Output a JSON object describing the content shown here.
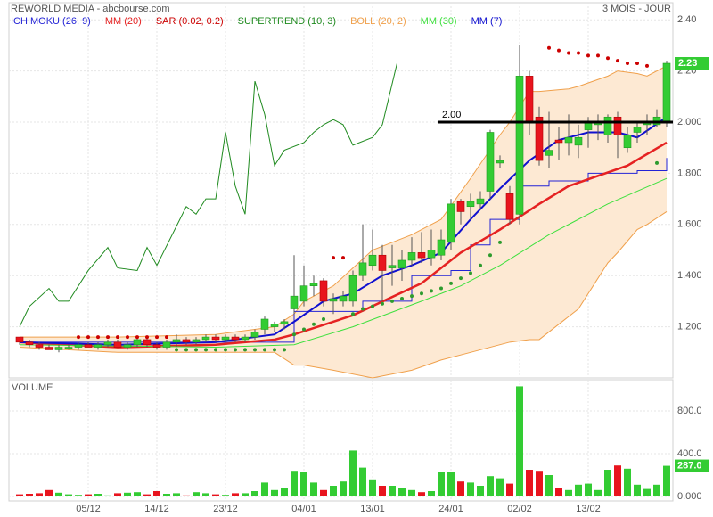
{
  "chart_data": [
    {
      "type": "candlestick",
      "title": "REWORLD MEDIA - abcbourse.com",
      "period": "3 MOIS - JOUR",
      "up_color": "#33cc33",
      "down_color": "#e8141e",
      "ylim": [
        1.0,
        2.46
      ],
      "yticks": [
        {
          "value": 1.2,
          "label": "1.200"
        },
        {
          "value": 1.4,
          "label": "1.400"
        },
        {
          "value": 1.6,
          "label": "1.600"
        },
        {
          "value": 1.8,
          "label": "1.800"
        },
        {
          "value": 2.0,
          "label": "2.000"
        },
        {
          "value": 2.2,
          "label": "2.20"
        },
        {
          "value": 2.4,
          "label": "2.40"
        }
      ],
      "grid": true,
      "open": [
        1.16,
        1.14,
        1.13,
        1.12,
        1.11,
        1.12,
        1.12,
        1.13,
        1.12,
        1.13,
        1.14,
        1.12,
        1.13,
        1.15,
        1.13,
        1.12,
        1.14,
        1.15,
        1.14,
        1.15,
        1.16,
        1.15,
        1.16,
        1.15,
        1.16,
        1.19,
        1.2,
        1.21,
        1.27,
        1.3,
        1.36,
        1.38,
        1.3,
        1.3,
        1.3,
        1.4,
        1.44,
        1.48,
        1.43,
        1.43,
        1.46,
        1.49,
        1.47,
        1.48,
        1.53,
        1.69,
        1.67,
        1.68,
        1.73,
        1.84,
        1.72,
        1.64,
        2.18,
        2.02,
        1.87,
        1.93,
        1.92,
        1.91,
        1.97,
        1.99,
        1.95,
        2.02,
        1.9,
        1.96,
        1.99,
        1.99,
        2.0
      ],
      "high": [
        1.16,
        1.15,
        1.14,
        1.13,
        1.13,
        1.13,
        1.14,
        1.14,
        1.14,
        1.15,
        1.15,
        1.14,
        1.16,
        1.16,
        1.14,
        1.15,
        1.17,
        1.16,
        1.16,
        1.17,
        1.17,
        1.17,
        1.17,
        1.17,
        1.19,
        1.24,
        1.22,
        1.23,
        1.48,
        1.44,
        1.4,
        1.39,
        1.33,
        1.34,
        1.42,
        1.6,
        1.58,
        1.52,
        1.52,
        1.5,
        1.55,
        1.57,
        1.58,
        1.58,
        1.7,
        1.7,
        1.72,
        1.73,
        1.97,
        1.87,
        1.75,
        2.3,
        2.2,
        2.06,
        2.04,
        1.98,
        2.03,
        1.99,
        2.02,
        2.03,
        2.03,
        2.04,
        1.98,
        2.0,
        2.03,
        2.05,
        2.24
      ],
      "low": [
        1.13,
        1.12,
        1.11,
        1.11,
        1.1,
        1.11,
        1.11,
        1.12,
        1.11,
        1.12,
        1.12,
        1.11,
        1.12,
        1.12,
        1.11,
        1.11,
        1.12,
        1.13,
        1.13,
        1.14,
        1.14,
        1.14,
        1.14,
        1.14,
        1.15,
        1.17,
        1.18,
        1.19,
        1.25,
        1.28,
        1.32,
        1.28,
        1.25,
        1.28,
        1.28,
        1.38,
        1.42,
        1.3,
        1.36,
        1.38,
        1.44,
        1.45,
        1.44,
        1.46,
        1.5,
        1.6,
        1.62,
        1.66,
        1.7,
        1.82,
        1.6,
        1.6,
        1.95,
        1.83,
        1.82,
        1.85,
        1.87,
        1.86,
        1.9,
        1.93,
        1.92,
        1.86,
        1.88,
        1.92,
        1.95,
        1.98,
        1.98
      ],
      "close": [
        1.14,
        1.13,
        1.12,
        1.11,
        1.12,
        1.12,
        1.13,
        1.12,
        1.13,
        1.14,
        1.12,
        1.13,
        1.15,
        1.13,
        1.12,
        1.14,
        1.15,
        1.14,
        1.15,
        1.16,
        1.15,
        1.16,
        1.15,
        1.16,
        1.18,
        1.23,
        1.21,
        1.22,
        1.32,
        1.36,
        1.37,
        1.3,
        1.31,
        1.32,
        1.4,
        1.45,
        1.48,
        1.42,
        1.44,
        1.46,
        1.49,
        1.47,
        1.5,
        1.54,
        1.68,
        1.65,
        1.69,
        1.7,
        1.96,
        1.85,
        1.62,
        2.18,
        2.0,
        1.85,
        1.89,
        1.92,
        1.94,
        1.94,
        2.0,
        2.0,
        2.02,
        1.95,
        1.95,
        1.98,
        2.0,
        2.02,
        2.23
      ],
      "annotation": {
        "text": "2.00",
        "value": 2.0
      },
      "overlays": [
        {
          "name": "ICHIMOKU (26, 9)",
          "type": "step",
          "color": "#2323d6",
          "x": [
            0,
            24,
            28,
            35,
            40,
            44,
            46,
            48,
            51,
            54,
            58,
            63,
            65,
            66
          ],
          "values": [
            1.14,
            1.14,
            1.26,
            1.3,
            1.4,
            1.42,
            1.52,
            1.62,
            1.75,
            1.77,
            1.8,
            1.81,
            1.81,
            1.86
          ]
        },
        {
          "name": "MM (20)",
          "type": "line",
          "color": "#e52222",
          "width": 2.5,
          "x": [
            0,
            10,
            20,
            26,
            28,
            34,
            41,
            45,
            49,
            53,
            56,
            62,
            66
          ],
          "values": [
            1.14,
            1.12,
            1.13,
            1.15,
            1.17,
            1.245,
            1.37,
            1.49,
            1.58,
            1.68,
            1.75,
            1.83,
            1.92
          ]
        },
        {
          "name": "SAR (0.02, 0.2)",
          "type": "dots",
          "color": "#cc0000",
          "below_color": "#2e9b2e",
          "x": [
            6,
            7,
            8,
            9,
            10,
            11,
            12,
            13,
            14,
            15,
            16,
            17,
            18,
            19,
            20,
            21,
            22,
            23,
            24,
            25,
            26,
            27,
            28,
            29,
            30,
            31,
            32,
            33,
            34,
            35,
            36,
            37,
            38,
            39,
            40,
            41,
            42,
            43,
            44,
            45,
            46,
            47,
            48,
            49,
            54,
            55,
            56,
            57,
            58,
            59,
            60,
            61,
            62,
            63,
            64,
            65
          ],
          "values": [
            1.16,
            1.16,
            1.16,
            1.16,
            1.16,
            1.16,
            1.16,
            1.16,
            1.16,
            1.16,
            1.11,
            1.11,
            1.11,
            1.11,
            1.11,
            1.11,
            1.11,
            1.11,
            1.11,
            1.11,
            1.11,
            1.11,
            1.17,
            1.19,
            1.21,
            1.23,
            1.47,
            1.47,
            1.25,
            1.27,
            1.28,
            1.29,
            1.3,
            1.31,
            1.32,
            1.33,
            1.34,
            1.35,
            1.37,
            1.39,
            1.41,
            1.44,
            1.48,
            1.53,
            2.29,
            2.28,
            2.27,
            2.27,
            2.26,
            2.26,
            2.25,
            2.24,
            2.23,
            2.23,
            2.22,
            1.84
          ]
        },
        {
          "name": "SUPERTREND (10, 3)",
          "type": "line",
          "color": "#1f8a1f",
          "width": 1,
          "x": [
            0,
            1,
            3,
            4,
            5,
            7,
            9,
            10,
            12,
            13,
            14,
            17,
            18,
            19,
            20,
            21,
            22,
            23,
            24,
            25,
            26,
            27,
            29,
            30,
            31,
            32,
            33,
            34,
            36,
            37,
            38.5
          ],
          "values": [
            1.2,
            1.28,
            1.35,
            1.3,
            1.3,
            1.42,
            1.51,
            1.43,
            1.42,
            1.51,
            1.44,
            1.67,
            1.64,
            1.7,
            1.7,
            1.96,
            1.75,
            1.64,
            2.16,
            2.03,
            1.83,
            1.89,
            1.92,
            1.96,
            1.99,
            2.01,
            1.99,
            1.91,
            1.94,
            1.99,
            2.23
          ]
        },
        {
          "name": "BOLL (20, 2)",
          "type": "band",
          "color": "#f0a04b",
          "fill": "#fde9d3",
          "x": [
            0,
            10,
            20,
            26,
            28,
            29,
            32,
            36,
            40,
            43,
            46,
            49,
            50,
            52,
            53,
            56,
            57,
            60,
            61,
            63,
            64,
            66
          ],
          "upper": [
            1.16,
            1.16,
            1.17,
            1.2,
            1.25,
            1.3,
            1.36,
            1.5,
            1.56,
            1.62,
            1.78,
            1.95,
            2.0,
            2.12,
            2.12,
            2.13,
            2.14,
            2.18,
            2.2,
            2.19,
            2.18,
            2.22
          ],
          "lower": [
            1.12,
            1.1,
            1.1,
            1.1,
            1.05,
            1.05,
            1.03,
            1.0,
            1.03,
            1.07,
            1.1,
            1.13,
            1.14,
            1.15,
            1.15,
            1.24,
            1.27,
            1.45,
            1.49,
            1.58,
            1.6,
            1.65
          ]
        },
        {
          "name": "MM (30)",
          "type": "line",
          "color": "#3ee03e",
          "width": 1,
          "x": [
            0,
            20,
            28,
            34,
            41,
            45,
            49,
            54,
            60,
            66
          ],
          "values": [
            1.13,
            1.12,
            1.13,
            1.2,
            1.3,
            1.36,
            1.44,
            1.56,
            1.68,
            1.78
          ]
        },
        {
          "name": "MM (7)",
          "type": "line",
          "color": "#1010d0",
          "width": 2,
          "x": [
            0,
            10,
            20,
            26,
            28,
            31,
            34,
            37,
            40,
            43,
            46,
            49,
            52,
            55,
            58,
            61,
            63,
            66
          ],
          "values": [
            1.14,
            1.13,
            1.14,
            1.17,
            1.22,
            1.3,
            1.33,
            1.4,
            1.44,
            1.49,
            1.62,
            1.74,
            1.85,
            1.93,
            1.96,
            1.96,
            1.94,
            2.02
          ]
        }
      ]
    },
    {
      "type": "bar",
      "title": "VOLUME",
      "values": [
        20,
        25,
        30,
        60,
        35,
        20,
        15,
        20,
        25,
        10,
        30,
        35,
        40,
        20,
        50,
        25,
        30,
        10,
        40,
        30,
        20,
        15,
        30,
        30,
        50,
        130,
        60,
        80,
        240,
        230,
        130,
        60,
        100,
        140,
        430,
        270,
        160,
        100,
        100,
        80,
        60,
        40,
        50,
        230,
        230,
        140,
        130,
        100,
        190,
        170,
        120,
        1030,
        250,
        240,
        200,
        80,
        60,
        110,
        120,
        60,
        250,
        290,
        260,
        110,
        70,
        110,
        287
      ],
      "last_value_label": "287.0",
      "ylim": [
        0,
        1092
      ],
      "yticks": [
        {
          "value": 0,
          "label": "0.000"
        },
        {
          "value": 400,
          "label": "400.0"
        },
        {
          "value": 800,
          "label": "800.0"
        }
      ],
      "xticks": [
        {
          "value": 7,
          "label": "05/12"
        },
        {
          "value": 14,
          "label": "14/12"
        },
        {
          "value": 21,
          "label": "23/12"
        },
        {
          "value": 29,
          "label": "04/01"
        },
        {
          "value": 36,
          "label": "13/01"
        },
        {
          "value": 44,
          "label": "24/01"
        },
        {
          "value": 51,
          "label": "02/02"
        },
        {
          "value": 58,
          "label": "13/02"
        }
      ],
      "grid": true
    }
  ]
}
